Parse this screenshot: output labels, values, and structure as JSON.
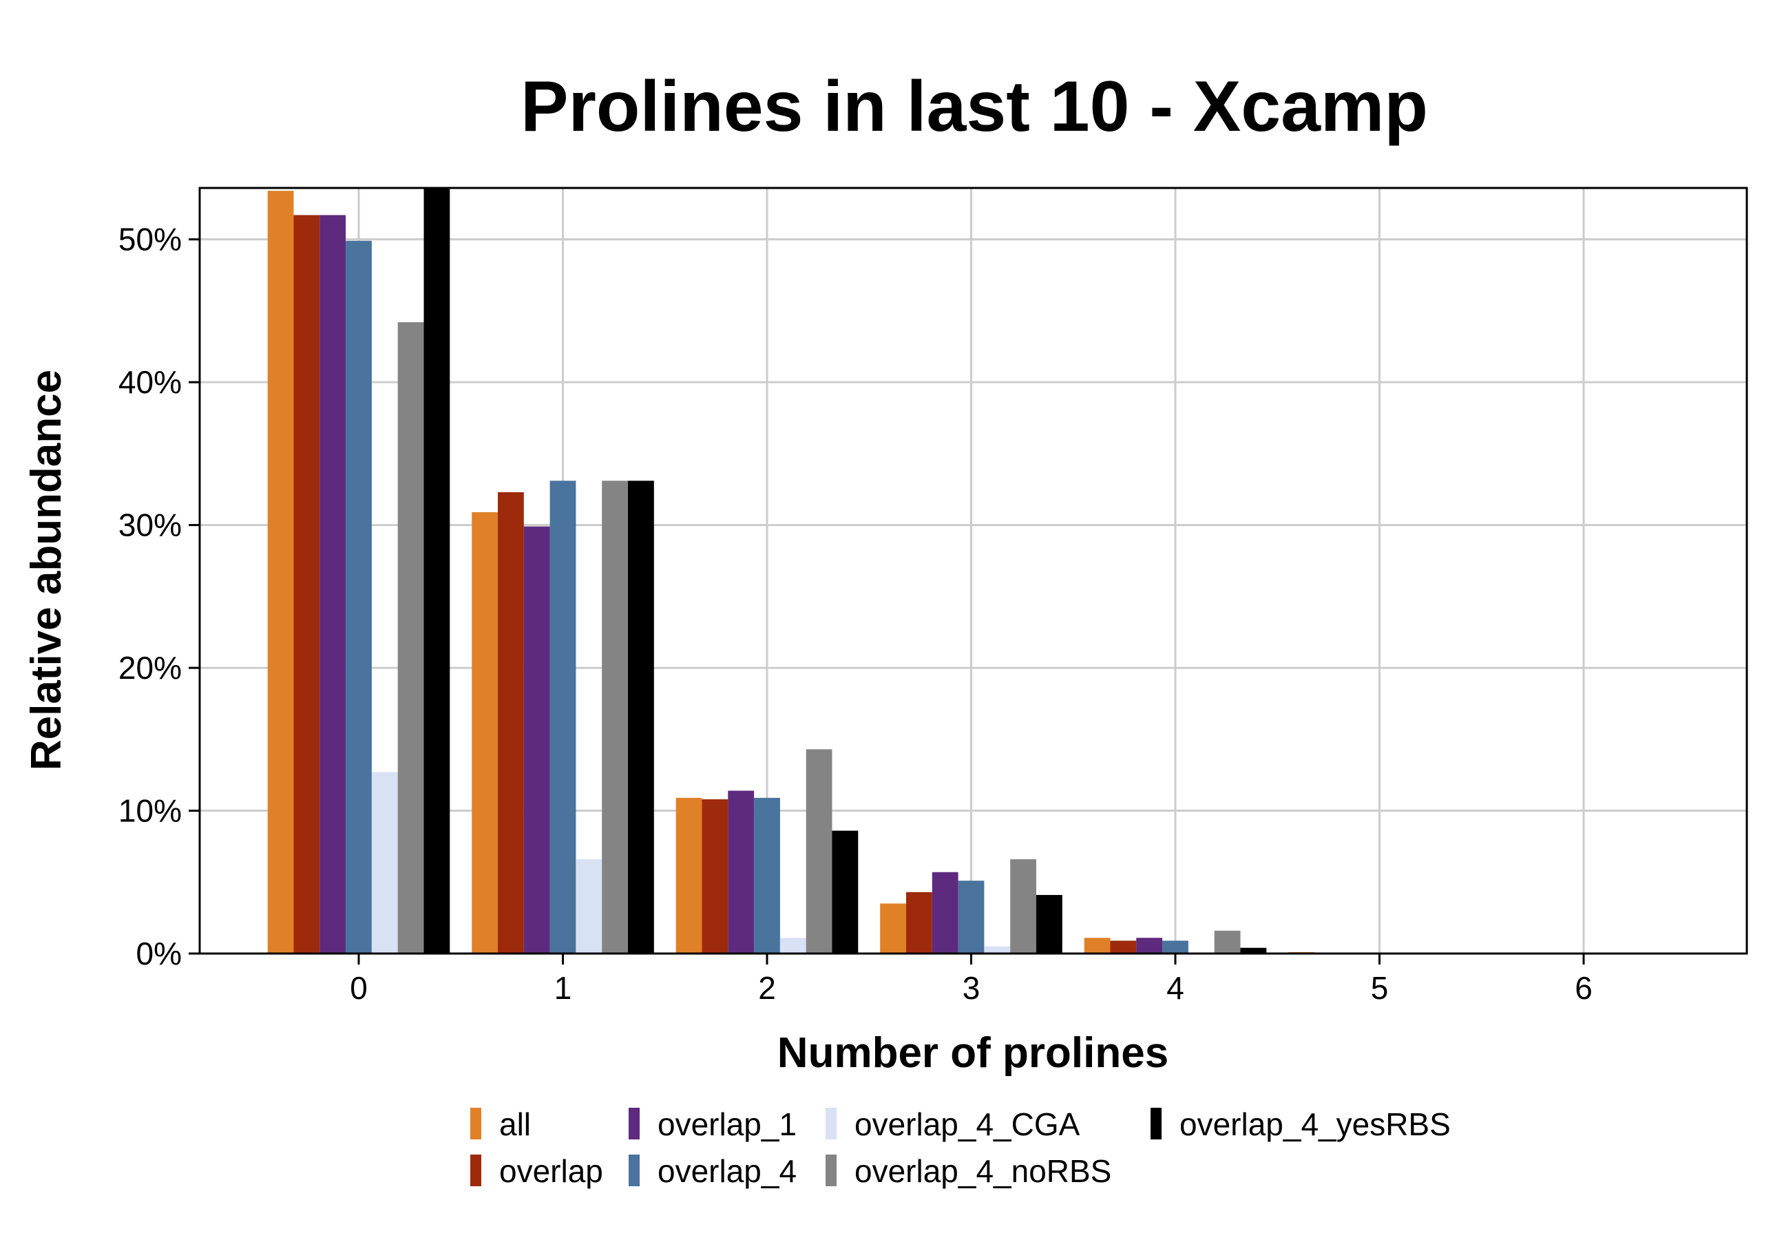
{
  "chart_data": {
    "type": "bar",
    "title": "Prolines in last 10 - Xcamp",
    "xlabel": "Number of prolines",
    "ylabel": "Relative abundance",
    "categories": [
      "0",
      "1",
      "2",
      "3",
      "4",
      "5",
      "6"
    ],
    "ylim": [
      0,
      53.6
    ],
    "yticks": [
      0,
      10,
      20,
      30,
      40,
      50
    ],
    "ytick_labels": [
      "0%",
      "10%",
      "20%",
      "30%",
      "40%",
      "50%"
    ],
    "grid": true,
    "legend_position": "bottom",
    "series": [
      {
        "name": "all",
        "color": "#E08128",
        "values": [
          53.4,
          30.9,
          10.9,
          3.5,
          1.1,
          0.1,
          0.0
        ]
      },
      {
        "name": "overlap",
        "color": "#9E2A0C",
        "values": [
          51.7,
          32.3,
          10.8,
          4.3,
          0.9,
          0.0,
          0.0
        ]
      },
      {
        "name": "overlap_1",
        "color": "#5E2A7E",
        "values": [
          51.7,
          29.9,
          11.4,
          5.7,
          1.1,
          0.0,
          0.0
        ]
      },
      {
        "name": "overlap_4",
        "color": "#4A739E",
        "values": [
          49.9,
          33.1,
          10.9,
          5.1,
          0.9,
          0.0,
          0.0
        ]
      },
      {
        "name": "overlap_4_CGA",
        "color": "#D9E1F5",
        "values": [
          12.7,
          6.6,
          1.1,
          0.5,
          0.0,
          0.0,
          0.0
        ]
      },
      {
        "name": "overlap_4_noRBS",
        "color": "#848484",
        "values": [
          44.2,
          33.1,
          14.3,
          6.6,
          1.6,
          0.0,
          0.0
        ]
      },
      {
        "name": "overlap_4_yesRBS",
        "color": "#000000",
        "values": [
          53.6,
          33.1,
          8.6,
          4.1,
          0.4,
          0.0,
          0.0
        ]
      }
    ]
  },
  "colors": {
    "grid": "#CCCCCC",
    "axis": "#000000",
    "background": "#FFFFFF"
  }
}
